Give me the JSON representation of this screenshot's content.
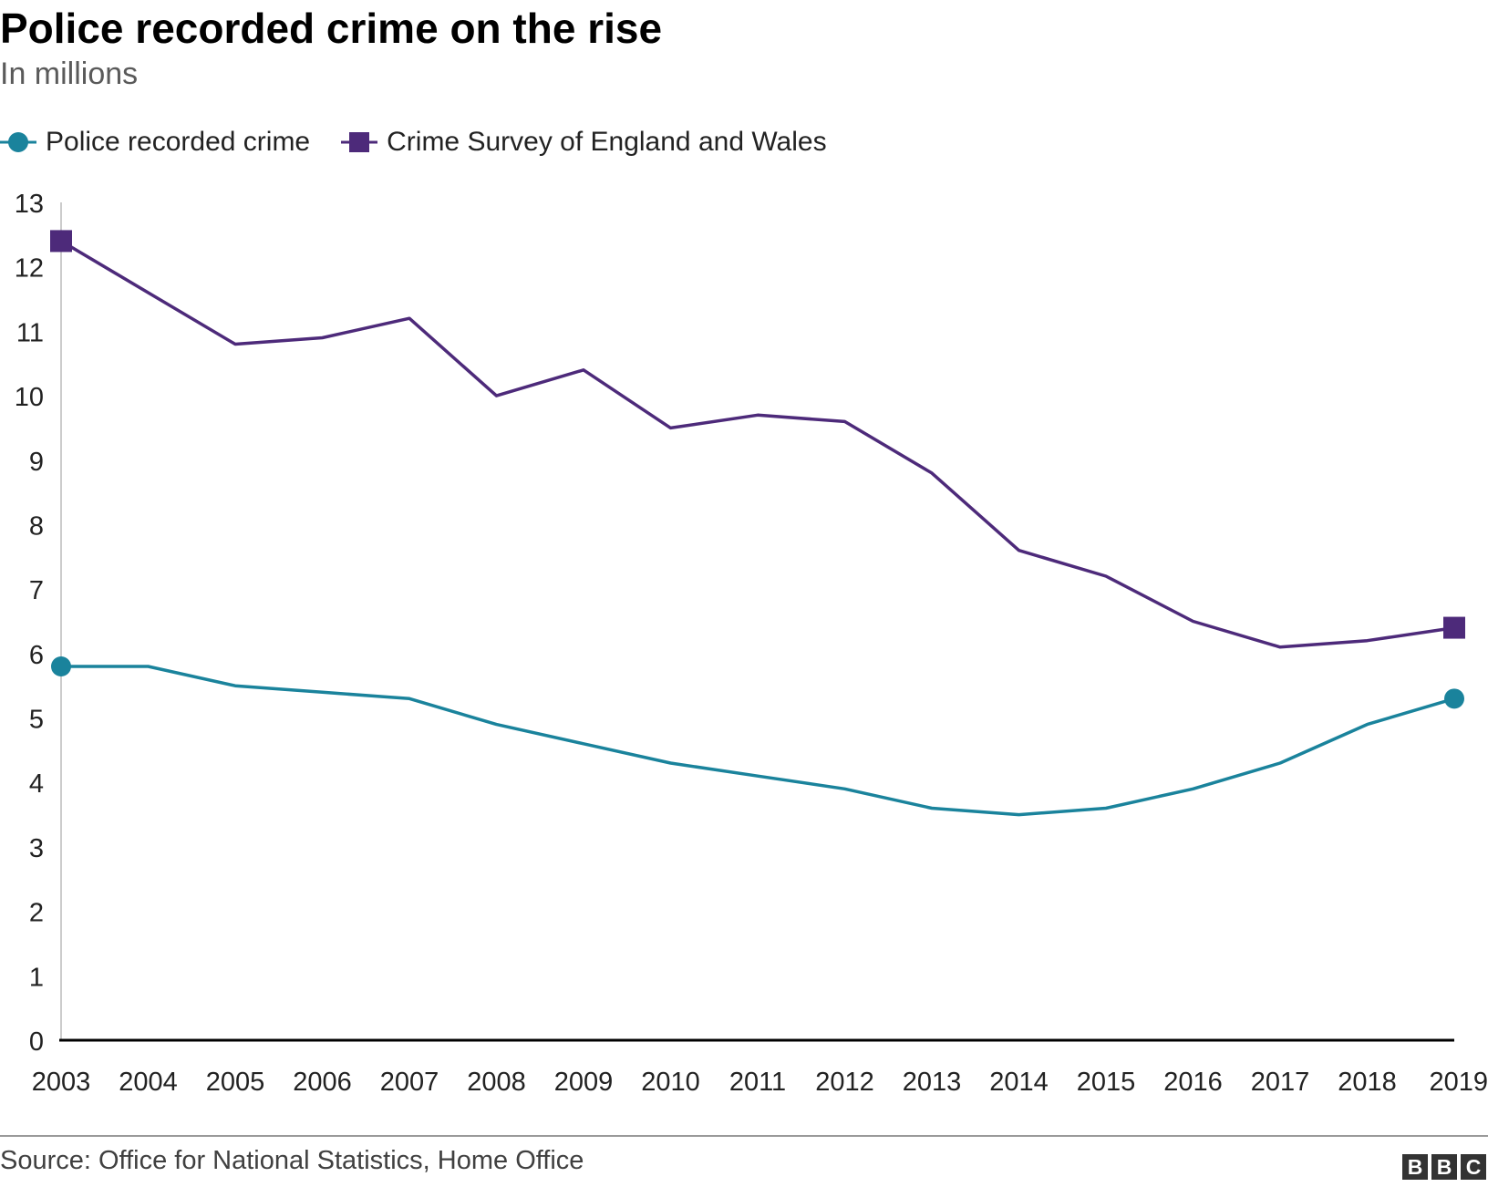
{
  "header": {
    "title": "Police recorded crime on the rise",
    "subtitle": "In millions"
  },
  "legend": [
    {
      "label": "Police recorded crime",
      "marker": "circle",
      "color": "#1a839c"
    },
    {
      "label": "Crime Survey of England and Wales",
      "marker": "square",
      "color": "#4d2a7a"
    }
  ],
  "footer": {
    "source": "Source: Office for National Statistics, Home Office",
    "logo_letters": [
      "B",
      "B",
      "C"
    ]
  },
  "colors": {
    "axis": "#000000",
    "y_axis_line": "#cccccc",
    "tick_text": "#222222",
    "police": "#1a839c",
    "survey": "#4d2a7a"
  },
  "chart_data": {
    "type": "line",
    "title": "Police recorded crime on the rise",
    "subtitle": "In millions",
    "xlabel": "",
    "ylabel": "",
    "x": [
      "2003",
      "2004",
      "2005",
      "2006",
      "2007",
      "2008",
      "2009",
      "2010",
      "2011",
      "2012",
      "2013",
      "2014",
      "2015",
      "2016",
      "2017",
      "2018",
      "2019"
    ],
    "ylim": [
      0,
      13
    ],
    "yticks": [
      "0",
      "1",
      "2",
      "3",
      "4",
      "5",
      "6",
      "7",
      "8",
      "9",
      "10",
      "11",
      "12",
      "13"
    ],
    "grid": false,
    "legend_position": "top-left",
    "series": [
      {
        "name": "Police recorded crime",
        "color": "#1a839c",
        "marker": "circle",
        "values": [
          5.8,
          5.8,
          5.5,
          5.4,
          5.3,
          4.9,
          4.6,
          4.3,
          4.1,
          3.9,
          3.6,
          3.5,
          3.6,
          3.9,
          4.3,
          4.9,
          5.3
        ]
      },
      {
        "name": "Crime Survey of England and Wales",
        "color": "#4d2a7a",
        "marker": "square",
        "values": [
          12.4,
          11.6,
          10.8,
          10.9,
          11.2,
          10.0,
          10.4,
          9.5,
          9.7,
          9.6,
          8.8,
          7.6,
          7.2,
          6.5,
          6.1,
          6.2,
          6.4
        ]
      }
    ]
  }
}
